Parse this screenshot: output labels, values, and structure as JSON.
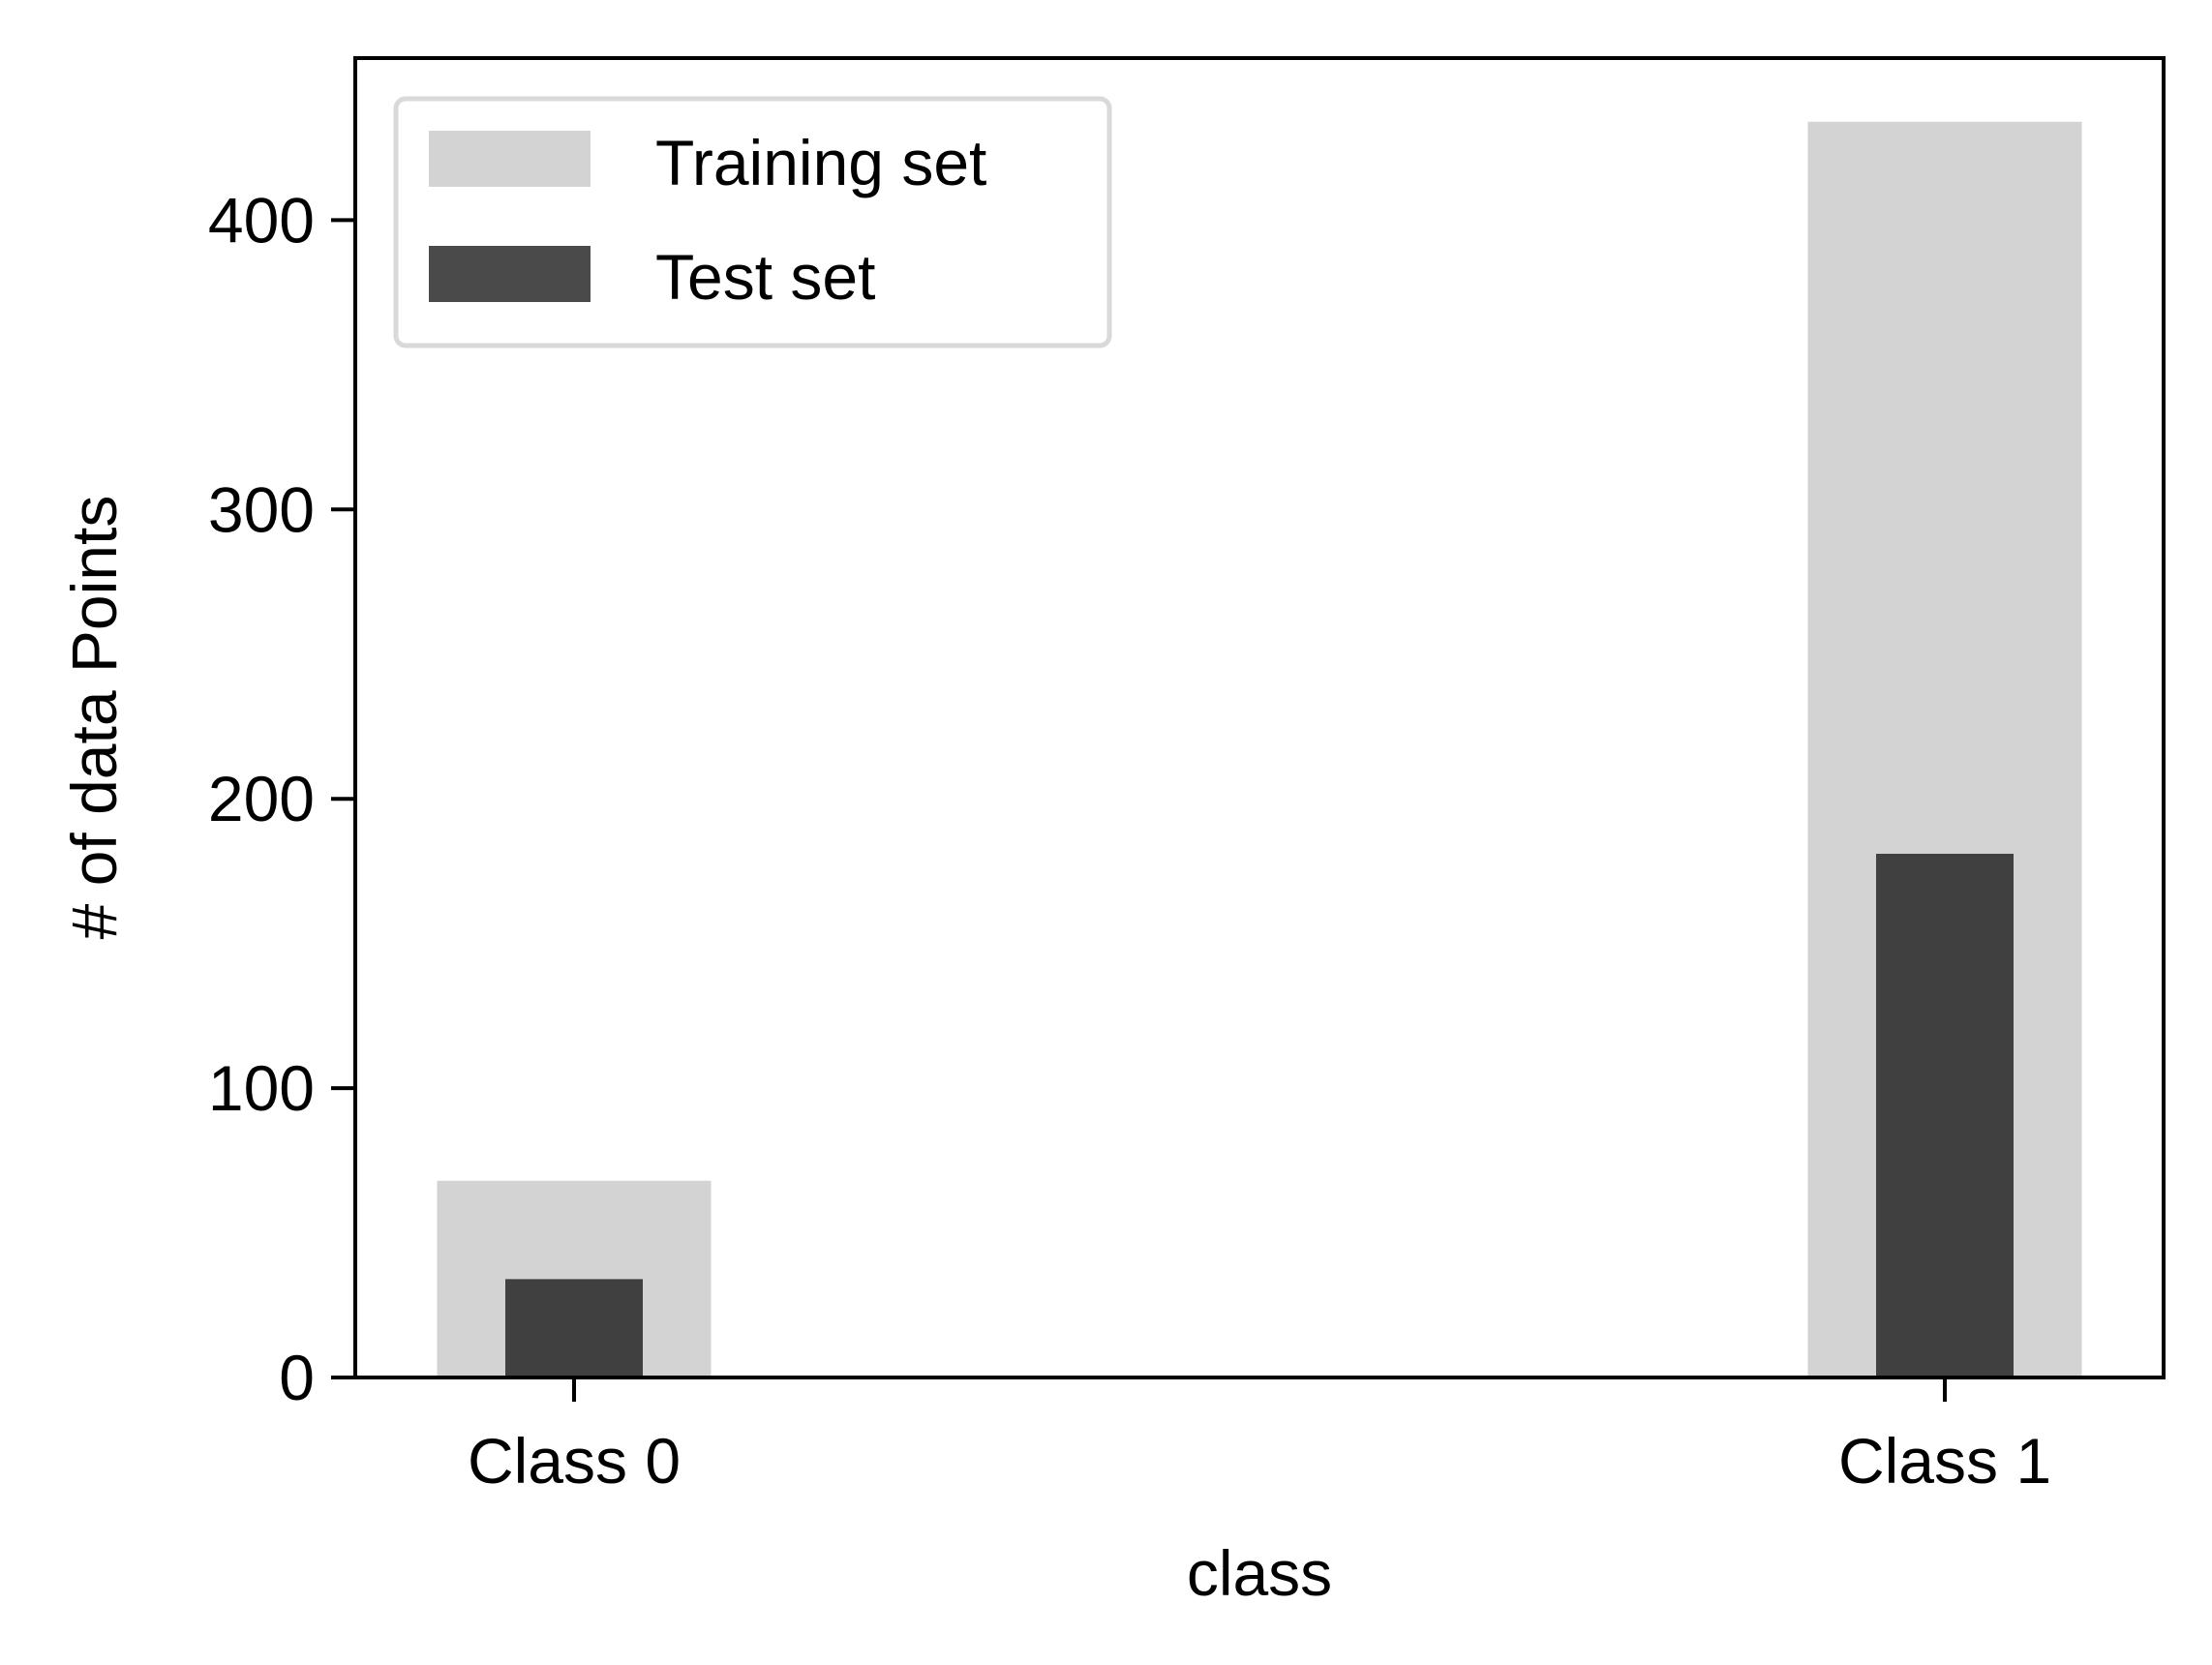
{
  "chart_data": {
    "type": "bar",
    "title": "",
    "xlabel": "class",
    "ylabel": "# of data Points",
    "categories": [
      "Class 0",
      "Class 1"
    ],
    "series": [
      {
        "name": "Training set",
        "values": [
          68,
          434
        ],
        "color": "#d3d3d3"
      },
      {
        "name": "Test set",
        "values": [
          34,
          181
        ],
        "color": "#404040"
      }
    ],
    "ylim": [
      0,
      456
    ],
    "yticks": [
      "0",
      "100",
      "200",
      "300",
      "400"
    ],
    "ytick_values": [
      0,
      100,
      200,
      300,
      400
    ],
    "grid": false,
    "legend_position": "top-left",
    "legend_entry_colors": [
      "#d3d3d3",
      "#4a4a4a"
    ],
    "bars_overlaid": true
  }
}
